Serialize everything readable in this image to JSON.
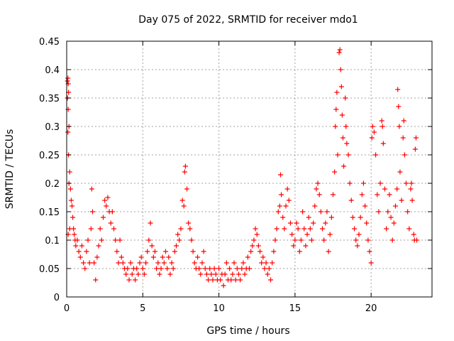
{
  "chart_data": {
    "type": "scatter",
    "title": "Day 075 of 2022, SRMTID for receiver mdo1",
    "xlabel": "GPS time / hours",
    "ylabel": "SRMTID / TECUs",
    "xlim": [
      0,
      24
    ],
    "ylim": [
      0,
      0.45
    ],
    "xticks": [
      0,
      5,
      10,
      15,
      20
    ],
    "xtick_labels": [
      "0",
      "5",
      "10",
      "15",
      "20"
    ],
    "yticks": [
      0,
      0.05,
      0.1,
      0.15,
      0.2,
      0.25,
      0.3,
      0.35,
      0.4,
      0.45
    ],
    "ytick_labels": [
      "0",
      "0.05",
      "0.1",
      "0.15",
      "0.2",
      "0.25",
      "0.3",
      "0.35",
      "0.4",
      "0.45"
    ],
    "grid": true,
    "marker": "plus",
    "color": "#ff0000",
    "series": [
      {
        "name": "mdo1",
        "points": [
          [
            0.05,
            0.38
          ],
          [
            0.08,
            0.385
          ],
          [
            0.1,
            0.375
          ],
          [
            0.12,
            0.36
          ],
          [
            0.05,
            0.35
          ],
          [
            0.1,
            0.33
          ],
          [
            0.15,
            0.3
          ],
          [
            0.08,
            0.29
          ],
          [
            0.12,
            0.25
          ],
          [
            0.2,
            0.22
          ],
          [
            0.15,
            0.2
          ],
          [
            0.25,
            0.19
          ],
          [
            0.3,
            0.17
          ],
          [
            0.35,
            0.16
          ],
          [
            0.4,
            0.14
          ],
          [
            0.2,
            0.12
          ],
          [
            0.1,
            0.11
          ],
          [
            0.45,
            0.12
          ],
          [
            0.5,
            0.11
          ],
          [
            0.55,
            0.1
          ],
          [
            0.6,
            0.09
          ],
          [
            0.7,
            0.1
          ],
          [
            0.8,
            0.08
          ],
          [
            0.9,
            0.07
          ],
          [
            1.0,
            0.09
          ],
          [
            1.1,
            0.06
          ],
          [
            1.2,
            0.05
          ],
          [
            1.3,
            0.08
          ],
          [
            1.4,
            0.1
          ],
          [
            1.5,
            0.06
          ],
          [
            1.6,
            0.12
          ],
          [
            1.65,
            0.19
          ],
          [
            1.7,
            0.15
          ],
          [
            1.8,
            0.06
          ],
          [
            1.9,
            0.03
          ],
          [
            2.0,
            0.07
          ],
          [
            2.1,
            0.09
          ],
          [
            2.2,
            0.12
          ],
          [
            2.3,
            0.1
          ],
          [
            2.4,
            0.14
          ],
          [
            2.5,
            0.17
          ],
          [
            2.6,
            0.16
          ],
          [
            2.7,
            0.175
          ],
          [
            2.8,
            0.15
          ],
          [
            2.9,
            0.13
          ],
          [
            3.0,
            0.15
          ],
          [
            3.1,
            0.12
          ],
          [
            3.2,
            0.1
          ],
          [
            3.3,
            0.08
          ],
          [
            3.4,
            0.06
          ],
          [
            3.5,
            0.1
          ],
          [
            3.6,
            0.07
          ],
          [
            3.7,
            0.06
          ],
          [
            3.8,
            0.05
          ],
          [
            3.9,
            0.04
          ],
          [
            4.0,
            0.05
          ],
          [
            4.1,
            0.03
          ],
          [
            4.2,
            0.06
          ],
          [
            4.3,
            0.04
          ],
          [
            4.4,
            0.05
          ],
          [
            4.5,
            0.03
          ],
          [
            4.6,
            0.05
          ],
          [
            4.7,
            0.04
          ],
          [
            4.8,
            0.06
          ],
          [
            4.9,
            0.07
          ],
          [
            5.0,
            0.05
          ],
          [
            5.1,
            0.04
          ],
          [
            5.2,
            0.06
          ],
          [
            5.3,
            0.08
          ],
          [
            5.4,
            0.1
          ],
          [
            5.5,
            0.13
          ],
          [
            5.6,
            0.09
          ],
          [
            5.7,
            0.07
          ],
          [
            5.8,
            0.08
          ],
          [
            5.9,
            0.05
          ],
          [
            6.0,
            0.06
          ],
          [
            6.1,
            0.04
          ],
          [
            6.2,
            0.05
          ],
          [
            6.3,
            0.07
          ],
          [
            6.4,
            0.06
          ],
          [
            6.5,
            0.08
          ],
          [
            6.6,
            0.05
          ],
          [
            6.7,
            0.07
          ],
          [
            6.8,
            0.04
          ],
          [
            6.9,
            0.06
          ],
          [
            7.0,
            0.05
          ],
          [
            7.1,
            0.08
          ],
          [
            7.2,
            0.09
          ],
          [
            7.3,
            0.11
          ],
          [
            7.4,
            0.1
          ],
          [
            7.5,
            0.12
          ],
          [
            7.6,
            0.17
          ],
          [
            7.7,
            0.16
          ],
          [
            7.75,
            0.22
          ],
          [
            7.8,
            0.23
          ],
          [
            7.9,
            0.19
          ],
          [
            8.0,
            0.13
          ],
          [
            8.1,
            0.12
          ],
          [
            8.2,
            0.1
          ],
          [
            8.3,
            0.08
          ],
          [
            8.4,
            0.06
          ],
          [
            8.5,
            0.05
          ],
          [
            8.6,
            0.07
          ],
          [
            8.7,
            0.05
          ],
          [
            8.8,
            0.04
          ],
          [
            8.9,
            0.06
          ],
          [
            9.0,
            0.08
          ],
          [
            9.1,
            0.05
          ],
          [
            9.2,
            0.04
          ],
          [
            9.3,
            0.03
          ],
          [
            9.4,
            0.05
          ],
          [
            9.5,
            0.04
          ],
          [
            9.6,
            0.03
          ],
          [
            9.7,
            0.05
          ],
          [
            9.8,
            0.04
          ],
          [
            9.9,
            0.03
          ],
          [
            10.0,
            0.05
          ],
          [
            10.1,
            0.03
          ],
          [
            10.2,
            0.04
          ],
          [
            10.3,
            0.02
          ],
          [
            10.4,
            0.04
          ],
          [
            10.5,
            0.06
          ],
          [
            10.6,
            0.03
          ],
          [
            10.7,
            0.05
          ],
          [
            10.8,
            0.03
          ],
          [
            10.9,
            0.04
          ],
          [
            11.0,
            0.06
          ],
          [
            11.1,
            0.03
          ],
          [
            11.2,
            0.05
          ],
          [
            11.3,
            0.04
          ],
          [
            11.4,
            0.03
          ],
          [
            11.5,
            0.05
          ],
          [
            11.6,
            0.06
          ],
          [
            11.7,
            0.04
          ],
          [
            11.8,
            0.05
          ],
          [
            11.9,
            0.07
          ],
          [
            12.0,
            0.05
          ],
          [
            12.1,
            0.08
          ],
          [
            12.2,
            0.09
          ],
          [
            12.3,
            0.1
          ],
          [
            12.4,
            0.12
          ],
          [
            12.5,
            0.11
          ],
          [
            12.6,
            0.09
          ],
          [
            12.7,
            0.08
          ],
          [
            12.8,
            0.06
          ],
          [
            12.9,
            0.07
          ],
          [
            13.0,
            0.05
          ],
          [
            13.1,
            0.06
          ],
          [
            13.2,
            0.04
          ],
          [
            13.3,
            0.05
          ],
          [
            13.4,
            0.03
          ],
          [
            13.5,
            0.06
          ],
          [
            13.6,
            0.08
          ],
          [
            13.7,
            0.1
          ],
          [
            13.8,
            0.12
          ],
          [
            13.9,
            0.15
          ],
          [
            14.0,
            0.16
          ],
          [
            14.05,
            0.215
          ],
          [
            14.1,
            0.18
          ],
          [
            14.2,
            0.14
          ],
          [
            14.3,
            0.12
          ],
          [
            14.4,
            0.16
          ],
          [
            14.5,
            0.19
          ],
          [
            14.6,
            0.17
          ],
          [
            14.7,
            0.13
          ],
          [
            14.8,
            0.11
          ],
          [
            14.9,
            0.09
          ],
          [
            15.0,
            0.1
          ],
          [
            15.1,
            0.13
          ],
          [
            15.2,
            0.12
          ],
          [
            15.3,
            0.08
          ],
          [
            15.4,
            0.1
          ],
          [
            15.5,
            0.15
          ],
          [
            15.6,
            0.12
          ],
          [
            15.7,
            0.09
          ],
          [
            15.8,
            0.11
          ],
          [
            15.9,
            0.14
          ],
          [
            16.0,
            0.12
          ],
          [
            16.1,
            0.1
          ],
          [
            16.2,
            0.13
          ],
          [
            16.3,
            0.16
          ],
          [
            16.4,
            0.19
          ],
          [
            16.5,
            0.2
          ],
          [
            16.6,
            0.18
          ],
          [
            16.7,
            0.15
          ],
          [
            16.8,
            0.12
          ],
          [
            16.9,
            0.1
          ],
          [
            17.0,
            0.13
          ],
          [
            17.1,
            0.15
          ],
          [
            17.2,
            0.08
          ],
          [
            17.3,
            0.11
          ],
          [
            17.4,
            0.14
          ],
          [
            17.5,
            0.18
          ],
          [
            17.6,
            0.22
          ],
          [
            17.65,
            0.3
          ],
          [
            17.7,
            0.33
          ],
          [
            17.75,
            0.36
          ],
          [
            17.8,
            0.25
          ],
          [
            17.9,
            0.43
          ],
          [
            17.95,
            0.435
          ],
          [
            18.0,
            0.4
          ],
          [
            18.05,
            0.37
          ],
          [
            18.1,
            0.32
          ],
          [
            18.15,
            0.28
          ],
          [
            18.2,
            0.23
          ],
          [
            18.3,
            0.35
          ],
          [
            18.35,
            0.3
          ],
          [
            18.4,
            0.27
          ],
          [
            18.5,
            0.25
          ],
          [
            18.6,
            0.2
          ],
          [
            18.7,
            0.17
          ],
          [
            18.8,
            0.14
          ],
          [
            18.9,
            0.12
          ],
          [
            19.0,
            0.1
          ],
          [
            19.1,
            0.09
          ],
          [
            19.2,
            0.11
          ],
          [
            19.3,
            0.14
          ],
          [
            19.4,
            0.18
          ],
          [
            19.5,
            0.2
          ],
          [
            19.6,
            0.16
          ],
          [
            19.7,
            0.13
          ],
          [
            19.8,
            0.1
          ],
          [
            19.9,
            0.08
          ],
          [
            20.0,
            0.06
          ],
          [
            20.05,
            0.28
          ],
          [
            20.1,
            0.3
          ],
          [
            20.2,
            0.29
          ],
          [
            20.3,
            0.25
          ],
          [
            20.4,
            0.18
          ],
          [
            20.5,
            0.15
          ],
          [
            20.6,
            0.2
          ],
          [
            20.7,
            0.31
          ],
          [
            20.75,
            0.3
          ],
          [
            20.8,
            0.27
          ],
          [
            20.9,
            0.19
          ],
          [
            21.0,
            0.12
          ],
          [
            21.1,
            0.15
          ],
          [
            21.2,
            0.18
          ],
          [
            21.3,
            0.14
          ],
          [
            21.4,
            0.1
          ],
          [
            21.5,
            0.13
          ],
          [
            21.6,
            0.16
          ],
          [
            21.7,
            0.19
          ],
          [
            21.75,
            0.365
          ],
          [
            21.8,
            0.335
          ],
          [
            21.85,
            0.3
          ],
          [
            21.9,
            0.22
          ],
          [
            22.0,
            0.17
          ],
          [
            22.1,
            0.28
          ],
          [
            22.15,
            0.31
          ],
          [
            22.2,
            0.25
          ],
          [
            22.3,
            0.2
          ],
          [
            22.4,
            0.15
          ],
          [
            22.5,
            0.12
          ],
          [
            22.6,
            0.19
          ],
          [
            22.65,
            0.2
          ],
          [
            22.7,
            0.17
          ],
          [
            22.8,
            0.11
          ],
          [
            22.85,
            0.1
          ],
          [
            22.9,
            0.26
          ],
          [
            22.95,
            0.28
          ],
          [
            23.0,
            0.1
          ]
        ]
      }
    ]
  }
}
